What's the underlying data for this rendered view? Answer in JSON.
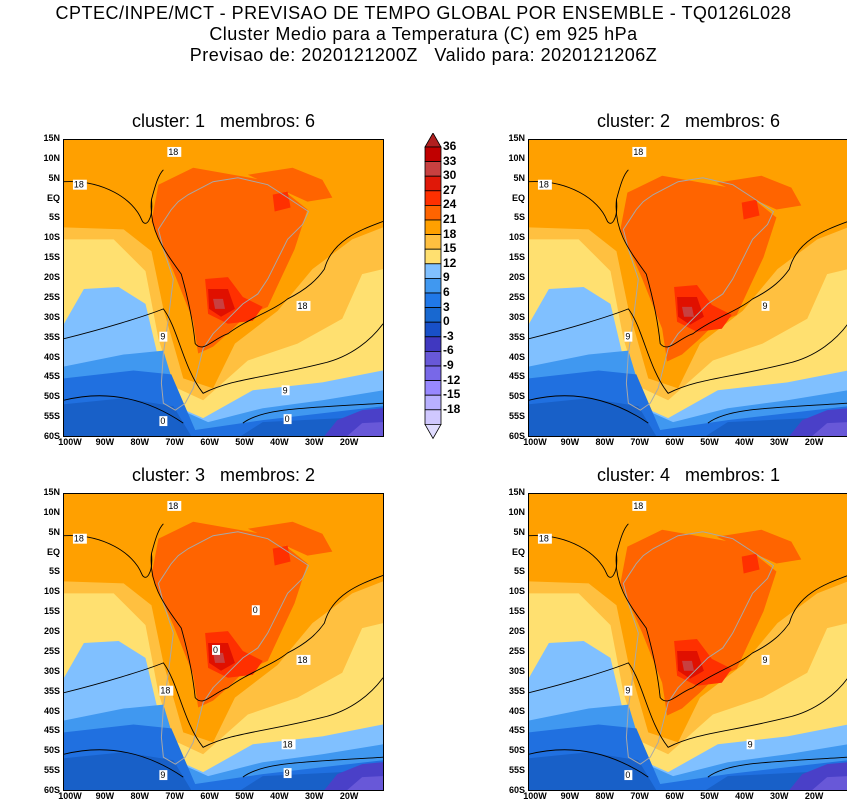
{
  "header": {
    "line1": "CPTEC/INPE/MCT - PREVISAO DE TEMPO GLOBAL POR ENSEMBLE - TQ0126L028",
    "line2": "Cluster Medio para a Temperatura (C) em 925 hPa",
    "line3": "Previsao de: 2020121200Z   Valido para: 2020121206Z"
  },
  "panels": [
    {
      "title": "cluster: 1   membros: 6",
      "contour_labels": [
        "18",
        "18",
        "18",
        "9",
        "9",
        "0",
        "0"
      ]
    },
    {
      "title": "cluster: 2   membros: 6",
      "contour_labels": [
        "18",
        "18",
        "9",
        "9"
      ]
    },
    {
      "title": "cluster: 3   membros: 2",
      "contour_labels": [
        "18",
        "18",
        "18",
        "18",
        "18",
        "9",
        "9",
        "0",
        "0"
      ]
    },
    {
      "title": "cluster: 4   membros: 1",
      "contour_labels": [
        "18",
        "18",
        "9",
        "9",
        "9",
        "0"
      ]
    }
  ],
  "axes": {
    "lat_ticks": [
      "15N",
      "10N",
      "5N",
      "EQ",
      "5S",
      "10S",
      "15S",
      "20S",
      "25S",
      "30S",
      "35S",
      "40S",
      "45S",
      "50S",
      "55S",
      "60S"
    ],
    "lon_ticks": [
      "100W",
      "90W",
      "80W",
      "70W",
      "60W",
      "50W",
      "40W",
      "30W",
      "20W"
    ]
  },
  "colorbar": {
    "labels": [
      "36",
      "33",
      "30",
      "27",
      "24",
      "21",
      "18",
      "15",
      "12",
      "9",
      "6",
      "3",
      "0",
      "-3",
      "-6",
      "-9",
      "-12",
      "-15",
      "-18"
    ],
    "colors": [
      "#b02020",
      "#c00000",
      "#c84040",
      "#e01808",
      "#ff3000",
      "#ff6400",
      "#ffa000",
      "#ffc040",
      "#ffe070",
      "#80c0ff",
      "#4098f0",
      "#2078e8",
      "#1868d0",
      "#1850c8",
      "#4038c0",
      "#6858d8",
      "#7868e8",
      "#9888ff",
      "#b8b0ff",
      "#d0c8ff",
      "#e0dcff"
    ]
  }
}
